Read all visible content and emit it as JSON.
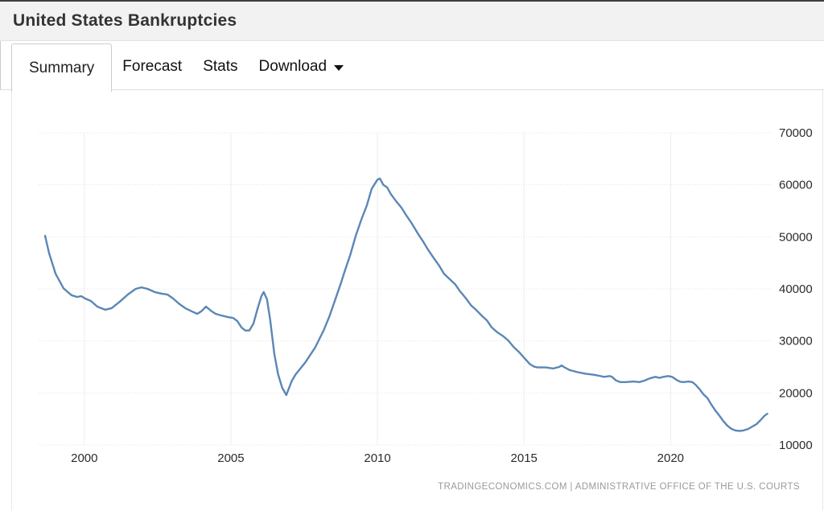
{
  "header": {
    "title": "United States Bankruptcies"
  },
  "tabs": {
    "items": [
      {
        "label": "Summary",
        "active": true
      },
      {
        "label": "Forecast",
        "active": false
      },
      {
        "label": "Stats",
        "active": false
      },
      {
        "label": "Download",
        "active": false,
        "has_dropdown": true,
        "dropdown_icon": "caret-down-icon"
      }
    ]
  },
  "footer": {
    "attribution": "TRADINGECONOMICS.COM | ADMINISTRATIVE OFFICE OF THE U.S. COURTS"
  },
  "colors": {
    "line": "#5b87b5",
    "header_bg": "#f2f2f2",
    "header_top_border": "#3f3f3f",
    "axis_text": "#2b2b2b",
    "attribution_text": "#9a9a9a"
  },
  "chart_data": {
    "type": "line",
    "title": "United States Bankruptcies",
    "xlabel": "",
    "ylabel": "",
    "x_ticks": [
      2000,
      2005,
      2010,
      2015,
      2020
    ],
    "y_ticks": [
      10000,
      20000,
      30000,
      40000,
      50000,
      60000,
      70000
    ],
    "xlim": [
      1998.44,
      2023.45
    ],
    "ylim": [
      10000,
      70000
    ],
    "grid": true,
    "y_axis_side": "right",
    "legend": "none",
    "series": [
      {
        "name": "Bankruptcies",
        "color": "#5b87b5",
        "points": [
          [
            1998.66,
            50200
          ],
          [
            1998.8,
            46800
          ],
          [
            1999.02,
            42900
          ],
          [
            1999.29,
            40100
          ],
          [
            1999.56,
            38800
          ],
          [
            1999.75,
            38450
          ],
          [
            1999.9,
            38600
          ],
          [
            2000.03,
            38150
          ],
          [
            2000.22,
            37700
          ],
          [
            2000.44,
            36600
          ],
          [
            2000.71,
            36000
          ],
          [
            2000.93,
            36300
          ],
          [
            2001.2,
            37500
          ],
          [
            2001.48,
            38900
          ],
          [
            2001.75,
            40000
          ],
          [
            2001.94,
            40300
          ],
          [
            2002.16,
            40000
          ],
          [
            2002.4,
            39400
          ],
          [
            2002.62,
            39100
          ],
          [
            2002.84,
            38900
          ],
          [
            2003.03,
            38150
          ],
          [
            2003.22,
            37200
          ],
          [
            2003.44,
            36300
          ],
          [
            2003.66,
            35700
          ],
          [
            2003.85,
            35200
          ],
          [
            2003.99,
            35700
          ],
          [
            2004.15,
            36600
          ],
          [
            2004.32,
            35800
          ],
          [
            2004.48,
            35200
          ],
          [
            2004.67,
            34900
          ],
          [
            2004.89,
            34600
          ],
          [
            2005.08,
            34400
          ],
          [
            2005.22,
            33800
          ],
          [
            2005.36,
            32600
          ],
          [
            2005.49,
            32000
          ],
          [
            2005.63,
            32000
          ],
          [
            2005.77,
            33350
          ],
          [
            2005.9,
            36000
          ],
          [
            2006.04,
            38600
          ],
          [
            2006.12,
            39400
          ],
          [
            2006.23,
            38000
          ],
          [
            2006.34,
            34000
          ],
          [
            2006.48,
            27500
          ],
          [
            2006.61,
            23600
          ],
          [
            2006.75,
            21000
          ],
          [
            2006.89,
            19600
          ],
          [
            2007.08,
            22350
          ],
          [
            2007.21,
            23600
          ],
          [
            2007.54,
            25900
          ],
          [
            2007.87,
            28700
          ],
          [
            2008.17,
            32100
          ],
          [
            2008.36,
            34700
          ],
          [
            2008.55,
            37800
          ],
          [
            2008.74,
            40900
          ],
          [
            2008.9,
            43700
          ],
          [
            2009.07,
            46500
          ],
          [
            2009.26,
            50200
          ],
          [
            2009.45,
            53300
          ],
          [
            2009.64,
            56100
          ],
          [
            2009.8,
            59200
          ],
          [
            2010.0,
            61000
          ],
          [
            2010.08,
            61200
          ],
          [
            2010.2,
            60000
          ],
          [
            2010.33,
            59500
          ],
          [
            2010.46,
            58200
          ],
          [
            2010.63,
            56900
          ],
          [
            2010.82,
            55600
          ],
          [
            2011.0,
            54000
          ],
          [
            2011.18,
            52500
          ],
          [
            2011.37,
            50700
          ],
          [
            2011.56,
            49100
          ],
          [
            2011.72,
            47600
          ],
          [
            2011.91,
            46000
          ],
          [
            2012.1,
            44500
          ],
          [
            2012.27,
            42900
          ],
          [
            2012.46,
            41900
          ],
          [
            2012.65,
            40900
          ],
          [
            2012.81,
            39600
          ],
          [
            2013.0,
            38300
          ],
          [
            2013.2,
            36800
          ],
          [
            2013.36,
            36000
          ],
          [
            2013.55,
            34900
          ],
          [
            2013.74,
            33900
          ],
          [
            2013.9,
            32600
          ],
          [
            2014.1,
            31600
          ],
          [
            2014.29,
            30900
          ],
          [
            2014.46,
            30100
          ],
          [
            2014.65,
            28800
          ],
          [
            2014.84,
            27800
          ],
          [
            2015.0,
            26800
          ],
          [
            2015.19,
            25600
          ],
          [
            2015.33,
            25100
          ],
          [
            2015.46,
            24900
          ],
          [
            2015.74,
            24900
          ],
          [
            2016.0,
            24700
          ],
          [
            2016.2,
            25000
          ],
          [
            2016.28,
            25300
          ],
          [
            2016.36,
            25000
          ],
          [
            2016.56,
            24400
          ],
          [
            2016.83,
            24000
          ],
          [
            2017.1,
            23700
          ],
          [
            2017.38,
            23500
          ],
          [
            2017.57,
            23300
          ],
          [
            2017.73,
            23100
          ],
          [
            2017.92,
            23250
          ],
          [
            2018.0,
            23100
          ],
          [
            2018.14,
            22400
          ],
          [
            2018.28,
            22100
          ],
          [
            2018.47,
            22100
          ],
          [
            2018.74,
            22200
          ],
          [
            2018.93,
            22100
          ],
          [
            2019.1,
            22350
          ],
          [
            2019.29,
            22800
          ],
          [
            2019.48,
            23100
          ],
          [
            2019.62,
            22900
          ],
          [
            2019.75,
            23100
          ],
          [
            2019.92,
            23250
          ],
          [
            2020.05,
            23100
          ],
          [
            2020.19,
            22550
          ],
          [
            2020.33,
            22150
          ],
          [
            2020.46,
            22100
          ],
          [
            2020.6,
            22200
          ],
          [
            2020.74,
            22100
          ],
          [
            2020.85,
            21600
          ],
          [
            2020.98,
            20800
          ],
          [
            2021.12,
            19750
          ],
          [
            2021.26,
            19000
          ],
          [
            2021.4,
            17700
          ],
          [
            2021.53,
            16600
          ],
          [
            2021.67,
            15600
          ],
          [
            2021.8,
            14600
          ],
          [
            2021.94,
            13700
          ],
          [
            2022.08,
            13100
          ],
          [
            2022.21,
            12800
          ],
          [
            2022.35,
            12700
          ],
          [
            2022.49,
            12800
          ],
          [
            2022.65,
            13100
          ],
          [
            2022.79,
            13550
          ],
          [
            2022.93,
            14000
          ],
          [
            2023.07,
            14800
          ],
          [
            2023.2,
            15600
          ],
          [
            2023.3,
            16000
          ]
        ]
      }
    ]
  }
}
